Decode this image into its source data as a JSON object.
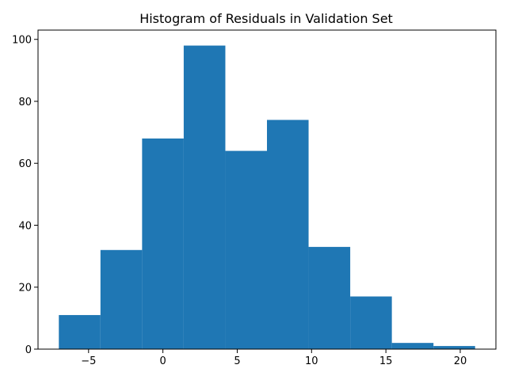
{
  "chart_data": {
    "type": "bar",
    "title": "Histogram of Residuals in Validation Set",
    "xlabel": "",
    "ylabel": "",
    "bar_color": "#1f77b4",
    "bins": [
      {
        "x0": -7.0,
        "x1": -4.2,
        "count": 11
      },
      {
        "x0": -4.2,
        "x1": -1.4,
        "count": 32
      },
      {
        "x0": -1.4,
        "x1": 1.4,
        "count": 68
      },
      {
        "x0": 1.4,
        "x1": 4.2,
        "count": 98
      },
      {
        "x0": 4.2,
        "x1": 7.0,
        "count": 64
      },
      {
        "x0": 7.0,
        "x1": 9.8,
        "count": 74
      },
      {
        "x0": 9.8,
        "x1": 12.6,
        "count": 33
      },
      {
        "x0": 12.6,
        "x1": 15.4,
        "count": 17
      },
      {
        "x0": 15.4,
        "x1": 18.2,
        "count": 2
      },
      {
        "x0": 18.2,
        "x1": 21.0,
        "count": 1
      }
    ],
    "xlim": [
      -8.4,
      22.4
    ],
    "ylim": [
      0,
      103
    ],
    "xticks": [
      -5,
      0,
      5,
      10,
      15,
      20
    ],
    "xtick_labels": [
      "−5",
      "0",
      "5",
      "10",
      "15",
      "20"
    ],
    "yticks": [
      0,
      20,
      40,
      60,
      80,
      100
    ],
    "ytick_labels": [
      "0",
      "20",
      "40",
      "60",
      "80",
      "100"
    ],
    "grid": false,
    "legend": "none"
  }
}
